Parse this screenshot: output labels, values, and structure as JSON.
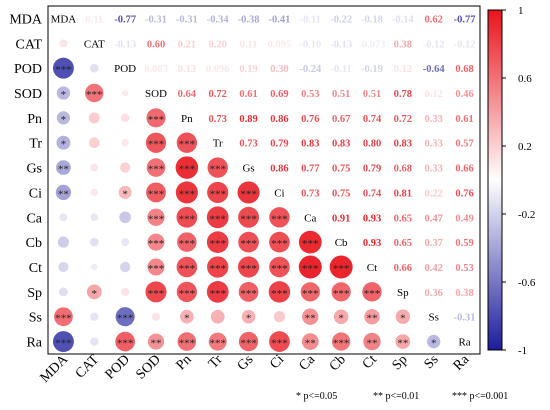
{
  "chart_data": {
    "type": "heatmap",
    "variables": [
      "MDA",
      "CAT",
      "POD",
      "SOD",
      "Pn",
      "Tr",
      "Gs",
      "Ci",
      "Ca",
      "Cb",
      "Ct",
      "Sp",
      "Ss",
      "Ra"
    ],
    "correlation_matrix": [
      [
        1,
        0.11,
        -0.77,
        -0.31,
        -0.31,
        -0.34,
        -0.38,
        -0.41,
        -0.11,
        -0.22,
        -0.18,
        -0.14,
        0.62,
        -0.77
      ],
      [
        0.11,
        1,
        -0.13,
        0.6,
        0.21,
        0.2,
        0.11,
        0.095,
        -0.1,
        -0.13,
        -0.073,
        0.38,
        -0.12,
        -0.12
      ],
      [
        -0.77,
        -0.13,
        1,
        0.083,
        0.13,
        0.096,
        0.19,
        0.3,
        -0.24,
        -0.11,
        -0.19,
        0.12,
        -0.64,
        0.68
      ],
      [
        -0.31,
        0.6,
        0.083,
        1,
        0.64,
        0.72,
        0.61,
        0.69,
        0.53,
        0.51,
        0.51,
        0.78,
        0.12,
        0.46
      ],
      [
        -0.31,
        0.21,
        0.13,
        0.64,
        1,
        0.73,
        0.89,
        0.86,
        0.76,
        0.67,
        0.74,
        0.72,
        0.33,
        0.61
      ],
      [
        -0.34,
        0.2,
        0.096,
        0.72,
        0.73,
        1,
        0.73,
        0.79,
        0.83,
        0.83,
        0.8,
        0.83,
        0.33,
        0.57
      ],
      [
        -0.38,
        0.11,
        0.19,
        0.61,
        0.89,
        0.73,
        1,
        0.86,
        0.77,
        0.75,
        0.79,
        0.68,
        0.33,
        0.66
      ],
      [
        -0.41,
        0.095,
        0.3,
        0.69,
        0.86,
        0.79,
        0.86,
        1,
        0.73,
        0.75,
        0.74,
        0.81,
        0.22,
        0.76
      ],
      [
        -0.11,
        -0.1,
        -0.24,
        0.53,
        0.76,
        0.83,
        0.77,
        0.73,
        1,
        0.91,
        0.93,
        0.65,
        0.47,
        0.49
      ],
      [
        -0.22,
        -0.13,
        -0.11,
        0.51,
        0.67,
        0.83,
        0.75,
        0.75,
        0.91,
        1,
        0.93,
        0.65,
        0.37,
        0.59
      ],
      [
        -0.18,
        -0.073,
        -0.19,
        0.51,
        0.74,
        0.8,
        0.79,
        0.74,
        0.93,
        0.93,
        1,
        0.66,
        0.42,
        0.53
      ],
      [
        -0.14,
        0.38,
        0.12,
        0.78,
        0.72,
        0.83,
        0.68,
        0.81,
        0.65,
        0.65,
        0.66,
        1,
        0.36,
        0.38
      ],
      [
        0.62,
        -0.12,
        -0.64,
        0.12,
        0.33,
        0.33,
        0.33,
        0.22,
        0.47,
        0.37,
        0.42,
        0.36,
        1,
        -0.31
      ],
      [
        -0.77,
        -0.12,
        0.68,
        0.46,
        0.61,
        0.57,
        0.66,
        0.76,
        0.49,
        0.59,
        0.53,
        0.38,
        -0.31,
        1
      ]
    ],
    "upper_labels": [
      [
        "",
        "0.11",
        "-0.77",
        "-0.31",
        "-0.31",
        "-0.34",
        "-0.38",
        "-0.41",
        "-0.11",
        "-0.22",
        "-0.18",
        "-0.14",
        "0.62",
        "-0.77"
      ],
      [
        "",
        "",
        "-0.13",
        "0.60",
        "0.21",
        "0.20",
        "0.11",
        "0.095",
        "-0.10",
        "-0.13",
        "-0.073",
        "0.38",
        "-0.12",
        "-0.12"
      ],
      [
        "",
        "",
        "",
        "0.083",
        "0.13",
        "0.096",
        "0.19",
        "0.30",
        "-0.24",
        "-0.11",
        "-0.19",
        "0.12",
        "-0.64",
        "0.68"
      ],
      [
        "",
        "",
        "",
        "",
        "0.64",
        "0.72",
        "0.61",
        "0.69",
        "0.53",
        "0.51",
        "0.51",
        "0.78",
        "0.12",
        "0.46"
      ],
      [
        "",
        "",
        "",
        "",
        "",
        "0.73",
        "0.89",
        "0.86",
        "0.76",
        "0.67",
        "0.74",
        "0.72",
        "0.33",
        "0.61"
      ],
      [
        "",
        "",
        "",
        "",
        "",
        "",
        "0.73",
        "0.79",
        "0.83",
        "0.83",
        "0.80",
        "0.83",
        "0.33",
        "0.57"
      ],
      [
        "",
        "",
        "",
        "",
        "",
        "",
        "",
        "0.86",
        "0.77",
        "0.75",
        "0.79",
        "0.68",
        "0.33",
        "0.66"
      ],
      [
        "",
        "",
        "",
        "",
        "",
        "",
        "",
        "",
        "0.73",
        "0.75",
        "0.74",
        "0.81",
        "0.22",
        "0.76"
      ],
      [
        "",
        "",
        "",
        "",
        "",
        "",
        "",
        "",
        "",
        "0.91",
        "0.93",
        "0.65",
        "0.47",
        "0.49"
      ],
      [
        "",
        "",
        "",
        "",
        "",
        "",
        "",
        "",
        "",
        "",
        "0.93",
        "0.65",
        "0.37",
        "0.59"
      ],
      [
        "",
        "",
        "",
        "",
        "",
        "",
        "",
        "",
        "",
        "",
        "",
        "0.66",
        "0.42",
        "0.53"
      ],
      [
        "",
        "",
        "",
        "",
        "",
        "",
        "",
        "",
        "",
        "",
        "",
        "",
        "0.36",
        "0.38"
      ],
      [
        "",
        "",
        "",
        "",
        "",
        "",
        "",
        "",
        "",
        "",
        "",
        "",
        "",
        "-0.31"
      ],
      [
        "",
        "",
        "",
        "",
        "",
        "",
        "",
        "",
        "",
        "",
        "",
        "",
        "",
        ""
      ]
    ],
    "significance": [
      [
        "",
        "",
        "",
        "",
        "",
        "",
        "",
        "",
        "",
        "",
        "",
        "",
        "",
        ""
      ],
      [
        "",
        "",
        "",
        "",
        "",
        "",
        "",
        "",
        "",
        "",
        "",
        "",
        "",
        ""
      ],
      [
        "***",
        "",
        "",
        "",
        "",
        "",
        "",
        "",
        "",
        "",
        "",
        "",
        "",
        ""
      ],
      [
        "*",
        "***",
        "",
        "",
        "",
        "",
        "",
        "",
        "",
        "",
        "",
        "",
        "",
        ""
      ],
      [
        "*",
        "",
        "",
        "***",
        "",
        "",
        "",
        "",
        "",
        "",
        "",
        "",
        "",
        ""
      ],
      [
        "*",
        "",
        "",
        "***",
        "***",
        "",
        "",
        "",
        "",
        "",
        "",
        "",
        "",
        ""
      ],
      [
        "**",
        "",
        "",
        "***",
        "***",
        "***",
        "",
        "",
        "",
        "",
        "",
        "",
        "",
        ""
      ],
      [
        "**",
        "",
        "*",
        "***",
        "***",
        "***",
        "***",
        "",
        "",
        "",
        "",
        "",
        "",
        ""
      ],
      [
        "",
        "",
        "",
        "***",
        "***",
        "***",
        "***",
        "***",
        "",
        "",
        "",
        "",
        "",
        ""
      ],
      [
        "",
        "",
        "",
        "***",
        "***",
        "***",
        "***",
        "***",
        "***",
        "",
        "",
        "",
        "",
        ""
      ],
      [
        "",
        "",
        "",
        "***",
        "***",
        "***",
        "***",
        "***",
        "***",
        "***",
        "",
        "",
        "",
        ""
      ],
      [
        "",
        "*",
        "",
        "***",
        "***",
        "***",
        "***",
        "***",
        "***",
        "***",
        "***",
        "",
        "",
        ""
      ],
      [
        "***",
        "",
        "***",
        "",
        "*",
        "",
        "*",
        "",
        "**",
        "*",
        "**",
        "*",
        "",
        ""
      ],
      [
        "***",
        "",
        "***",
        "**",
        "***",
        "***",
        "***",
        "***",
        "**",
        "***",
        "**",
        "**",
        "*",
        ""
      ]
    ],
    "colorbar": {
      "min": -1,
      "max": 1,
      "ticks": [
        "1",
        "0.6",
        "0.2",
        "-0.2",
        "-0.6",
        "-1"
      ]
    },
    "colors": {
      "negative": "#1c1c9c",
      "neutral": "#ffffff",
      "positive": "#e8141c"
    },
    "significance_note": [
      "* p<=0.05",
      "** p<=0.01",
      "*** p<=0.001"
    ]
  }
}
